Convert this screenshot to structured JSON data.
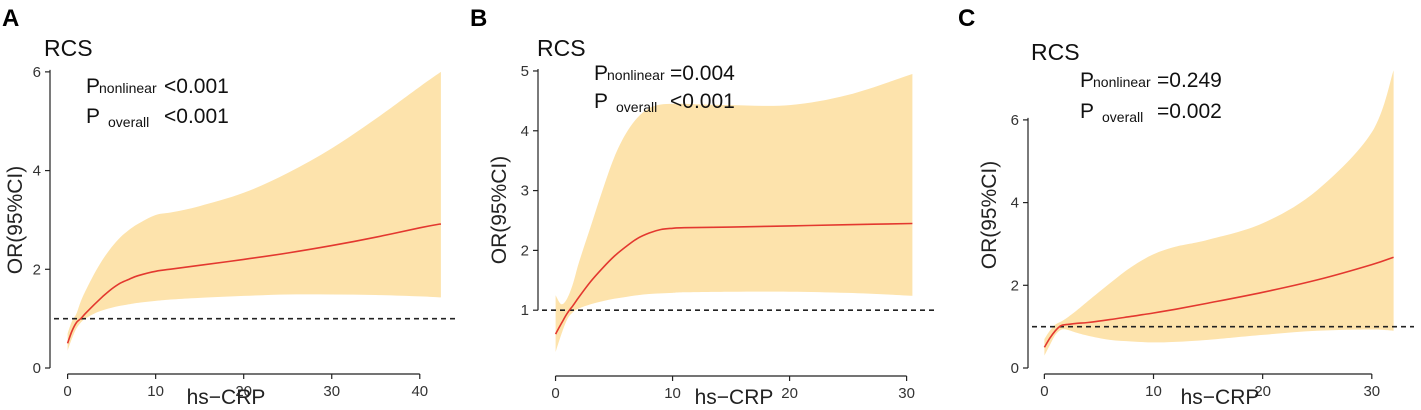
{
  "colors": {
    "band": "#fde3ac",
    "line": "#e3382f",
    "ref": "#222222",
    "axis": "#222222"
  },
  "chart_data": [
    {
      "panel": "A",
      "type": "line",
      "title": "RCS",
      "xlabel": "hs−CRP",
      "ylabel": "OR(95%CI)",
      "xlim": [
        -2,
        44
      ],
      "ylim": [
        0,
        6.2
      ],
      "xticks": [
        0,
        10,
        20,
        30,
        40
      ],
      "yticks": [
        0,
        2,
        4,
        6
      ],
      "reference_y": 1,
      "annotations": [
        {
          "main": "P",
          "sub": "nonlinear",
          "value": "<0.001"
        },
        {
          "main": "P",
          "sub": "overall",
          "value": "<0.001"
        }
      ],
      "x": [
        0,
        0.5,
        1,
        1.5,
        2,
        3,
        4,
        5,
        6,
        7,
        8,
        10,
        12,
        15,
        20,
        25,
        30,
        35,
        40,
        42.4
      ],
      "y": [
        0.5,
        0.75,
        0.92,
        1.0,
        1.1,
        1.28,
        1.45,
        1.6,
        1.72,
        1.8,
        1.87,
        1.96,
        2.01,
        2.08,
        2.2,
        2.33,
        2.48,
        2.65,
        2.84,
        2.92
      ],
      "lower": [
        0.35,
        0.6,
        0.8,
        0.92,
        1.0,
        1.1,
        1.17,
        1.22,
        1.26,
        1.29,
        1.32,
        1.36,
        1.39,
        1.42,
        1.46,
        1.49,
        1.49,
        1.48,
        1.45,
        1.43
      ],
      "upper": [
        0.7,
        0.95,
        1.1,
        1.35,
        1.55,
        1.9,
        2.2,
        2.45,
        2.65,
        2.8,
        2.92,
        3.1,
        3.16,
        3.28,
        3.55,
        3.95,
        4.45,
        5.05,
        5.7,
        6.0
      ]
    },
    {
      "panel": "B",
      "type": "line",
      "title": "RCS",
      "xlabel": "hs−CRP",
      "ylabel": "OR(95%CI)",
      "xlim": [
        -1.5,
        32
      ],
      "ylim": [
        0,
        5.15
      ],
      "xticks": [
        0,
        10,
        20,
        30
      ],
      "yticks": [
        1,
        2,
        3,
        4,
        5
      ],
      "reference_y": 1,
      "annotations": [
        {
          "main": "P",
          "sub": "nonlinear",
          "value": "=0.004"
        },
        {
          "main": "P",
          "sub": "overall",
          "value": "<0.001"
        }
      ],
      "x": [
        0,
        0.5,
        1,
        1.5,
        2,
        3,
        4,
        5,
        6,
        7,
        8,
        9,
        10,
        11,
        15,
        20,
        25,
        30.5
      ],
      "y": [
        0.6,
        0.78,
        0.95,
        1.08,
        1.22,
        1.48,
        1.7,
        1.9,
        2.06,
        2.2,
        2.29,
        2.35,
        2.37,
        2.38,
        2.39,
        2.41,
        2.43,
        2.45
      ],
      "lower": [
        0.3,
        0.6,
        0.85,
        0.97,
        1.03,
        1.1,
        1.15,
        1.19,
        1.22,
        1.25,
        1.27,
        1.28,
        1.29,
        1.3,
        1.31,
        1.31,
        1.29,
        1.24
      ],
      "upper": [
        1.25,
        1.1,
        1.2,
        1.45,
        1.8,
        2.4,
        3.0,
        3.55,
        3.95,
        4.22,
        4.38,
        4.44,
        4.45,
        4.45,
        4.43,
        4.43,
        4.6,
        4.95
      ]
    },
    {
      "panel": "C",
      "type": "line",
      "title": "RCS",
      "xlabel": "hs−CRP",
      "ylabel": "OR(95%CI)",
      "xlim": [
        -1.5,
        33.5
      ],
      "ylim": [
        0,
        7.4
      ],
      "xticks": [
        0,
        10,
        20,
        30
      ],
      "yticks": [
        0,
        2,
        4,
        6
      ],
      "reference_y": 1,
      "annotations": [
        {
          "main": "P",
          "sub": "nonlinear",
          "value": "=0.249"
        },
        {
          "main": "P",
          "sub": "overall",
          "value": "=0.002"
        }
      ],
      "x": [
        0,
        0.5,
        1,
        1.5,
        2,
        3,
        4,
        6,
        8,
        10,
        12,
        15,
        20,
        25,
        30,
        32
      ],
      "y": [
        0.5,
        0.72,
        0.9,
        1.02,
        1.05,
        1.08,
        1.1,
        1.17,
        1.25,
        1.33,
        1.42,
        1.57,
        1.83,
        2.13,
        2.5,
        2.68
      ],
      "lower": [
        0.3,
        0.55,
        0.8,
        0.92,
        0.93,
        0.85,
        0.78,
        0.68,
        0.64,
        0.62,
        0.63,
        0.68,
        0.8,
        0.9,
        0.93,
        0.9
      ],
      "upper": [
        0.7,
        0.9,
        1.05,
        1.12,
        1.2,
        1.4,
        1.62,
        2.05,
        2.45,
        2.75,
        2.93,
        3.1,
        3.5,
        4.3,
        5.7,
        7.2
      ]
    }
  ]
}
